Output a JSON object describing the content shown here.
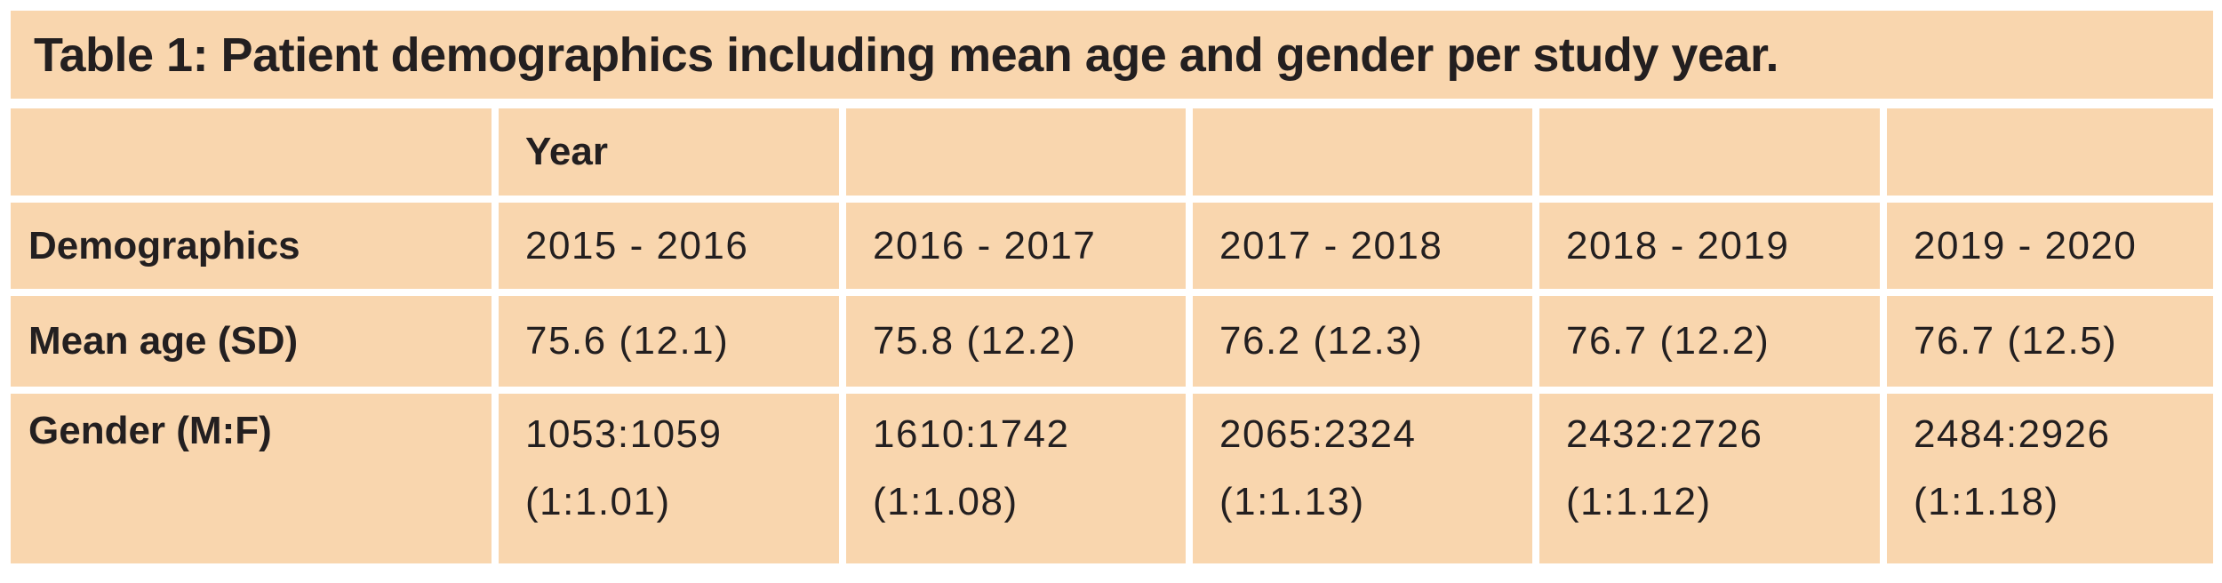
{
  "table": {
    "title": "Table 1: Patient demographics including mean age and gender per study year.",
    "year_header": "Year",
    "demographics_label": "Demographics",
    "years": [
      "2015 - 2016",
      "2016 - 2017",
      "2017 - 2018",
      "2018 - 2019",
      "2019 - 2020"
    ],
    "rows": {
      "mean_age": {
        "label": "Mean age (SD)",
        "values": [
          "75.6 (12.1)",
          "75.8 (12.2)",
          "76.2 (12.3)",
          "76.7 (12.2)",
          "76.7 (12.5)"
        ]
      },
      "gender": {
        "label": "Gender (M:F)",
        "counts": [
          "1053:1059",
          "1610:1742",
          "2065:2324",
          "2432:2726",
          "2484:2926"
        ],
        "ratios": [
          "(1:1.01)",
          "(1:1.08)",
          "(1:1.13)",
          "(1:1.12)",
          "(1:1.18)"
        ]
      }
    }
  },
  "chart_data": {
    "type": "table",
    "title": "Table 1: Patient demographics including mean age and gender per study year.",
    "columns": [
      "Demographics",
      "2015 - 2016",
      "2016 - 2017",
      "2017 - 2018",
      "2018 - 2019",
      "2019 - 2020"
    ],
    "rows": [
      [
        "Mean age (SD)",
        "75.6 (12.1)",
        "75.8 (12.2)",
        "76.2 (12.3)",
        "76.7 (12.2)",
        "76.7 (12.5)"
      ],
      [
        "Gender (M:F)",
        "1053:1059 (1:1.01)",
        "1610:1742 (1:1.08)",
        "2065:2324 (1:1.13)",
        "2432:2726 (1:1.12)",
        "2484:2926 (1:1.18)"
      ]
    ]
  },
  "colors": {
    "cell_background": "#f9d6ae",
    "text": "#231f20",
    "page_background": "#ffffff"
  }
}
